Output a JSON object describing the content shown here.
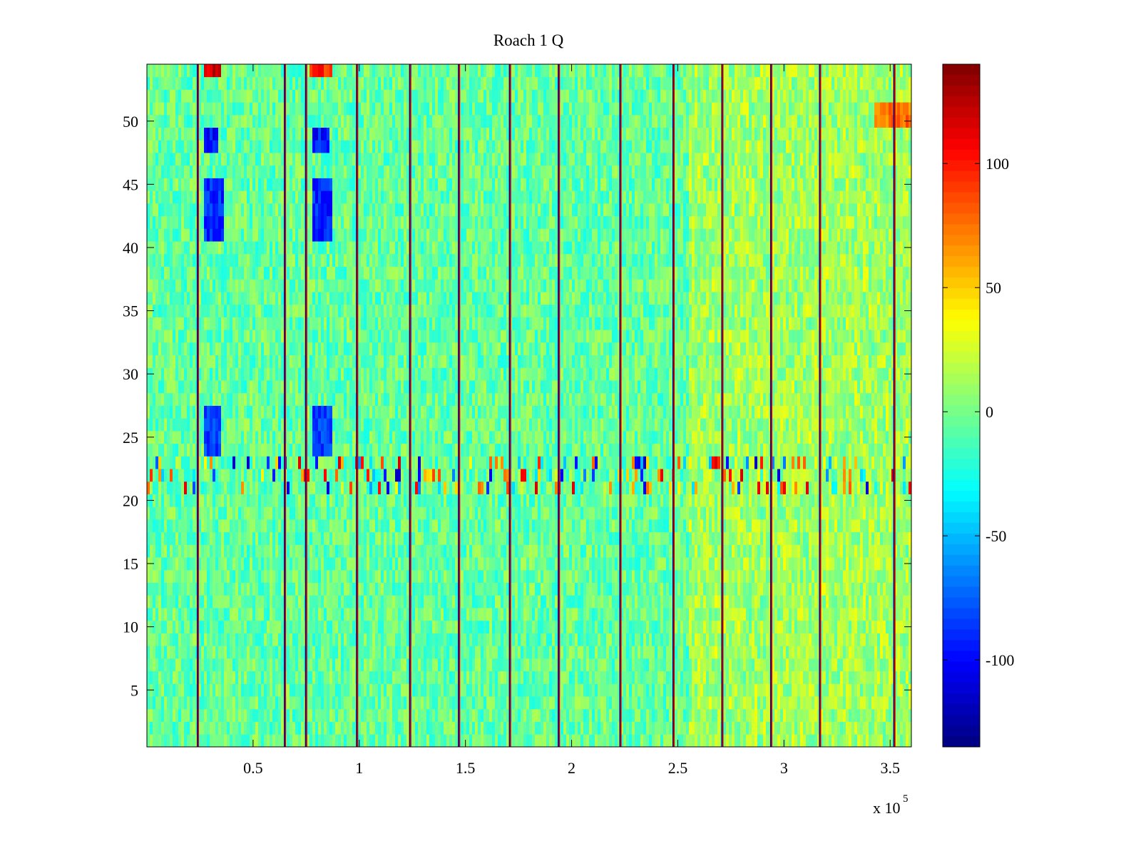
{
  "chart_data": {
    "type": "heatmap",
    "title": "Roach 1 Q",
    "xlabel": "",
    "ylabel": "",
    "x_exponent_label": "x 10",
    "x_exponent_power": "5",
    "x_scale": 100000,
    "xlim": [
      0.0,
      3.6
    ],
    "ylim": [
      0.5,
      54.5
    ],
    "xticks": [
      0.5,
      1.0,
      1.5,
      2.0,
      2.5,
      3.0,
      3.5
    ],
    "xtick_labels": [
      "0.5",
      "1",
      "1.5",
      "2",
      "2.5",
      "3",
      "3.5"
    ],
    "yticks": [
      5,
      10,
      15,
      20,
      25,
      30,
      35,
      40,
      45,
      50
    ],
    "ytick_labels": [
      "5",
      "10",
      "15",
      "20",
      "25",
      "30",
      "35",
      "40",
      "45",
      "50"
    ],
    "colormap": "jet",
    "clim": [
      -135,
      140
    ],
    "colorbar_ticks": [
      -100,
      -50,
      0,
      50,
      100
    ],
    "colorbar_tick_labels": [
      "-100",
      "-50",
      "0",
      "50",
      "100"
    ],
    "grid": false,
    "rows": 54,
    "baseline_value": -5,
    "vertical_stripe_x": [
      0.24,
      0.65,
      0.75,
      0.99,
      1.24,
      1.47,
      1.71,
      1.94,
      2.23,
      2.48,
      2.71,
      2.94,
      3.17,
      3.52
    ],
    "noisy_band_rows": [
      21,
      23
    ],
    "low_value_patches": [
      {
        "x_range": [
          0.27,
          0.35
        ],
        "rows": [
          24,
          27
        ],
        "value": -85
      },
      {
        "x_range": [
          0.27,
          0.36
        ],
        "rows": [
          41,
          45
        ],
        "value": -90
      },
      {
        "x_range": [
          0.27,
          0.34
        ],
        "rows": [
          48,
          49
        ],
        "value": -95
      },
      {
        "x_range": [
          0.78,
          0.87
        ],
        "rows": [
          24,
          27
        ],
        "value": -85
      },
      {
        "x_range": [
          0.78,
          0.87
        ],
        "rows": [
          41,
          45
        ],
        "value": -90
      },
      {
        "x_range": [
          0.78,
          0.86
        ],
        "rows": [
          48,
          49
        ],
        "value": -95
      }
    ],
    "high_value_patches": [
      {
        "x_range": [
          0.27,
          0.35
        ],
        "rows": [
          54,
          54
        ],
        "value": 115
      },
      {
        "x_range": [
          0.77,
          0.87
        ],
        "rows": [
          54,
          54
        ],
        "value": 95
      },
      {
        "x_range": [
          3.42,
          3.6
        ],
        "rows": [
          50,
          51
        ],
        "value": 75
      }
    ],
    "warm_region": {
      "x_range": [
        2.55,
        3.6
      ],
      "value": 20
    }
  },
  "colors": {
    "axis": "#000000",
    "background": "#ffffff"
  }
}
